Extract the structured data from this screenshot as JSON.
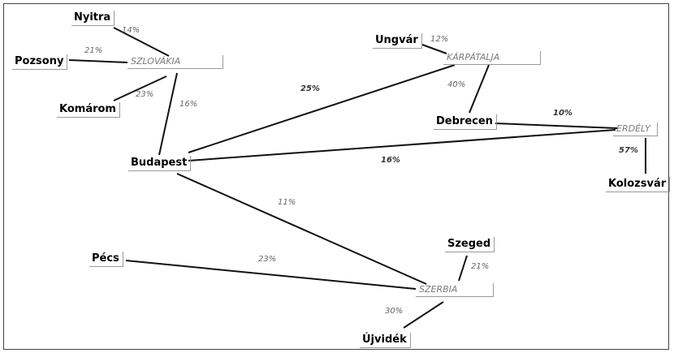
{
  "nodes": [
    {
      "id": "nyitra",
      "label": "Nyitra",
      "kind": "city"
    },
    {
      "id": "pozsony",
      "label": "Pozsony",
      "kind": "city"
    },
    {
      "id": "szlovakia",
      "label": "SZLOVÁKIA",
      "kind": "region"
    },
    {
      "id": "komarom",
      "label": "Komárom",
      "kind": "city"
    },
    {
      "id": "budapest",
      "label": "Budapest",
      "kind": "city"
    },
    {
      "id": "ungvar",
      "label": "Ungvár",
      "kind": "city"
    },
    {
      "id": "karpatalja",
      "label": "KÁRPÁTALJA",
      "kind": "region"
    },
    {
      "id": "debrecen",
      "label": "Debrecen",
      "kind": "city"
    },
    {
      "id": "erdely",
      "label": "ERDÉLY",
      "kind": "region"
    },
    {
      "id": "kolozsvar",
      "label": "Kolozsvár",
      "kind": "city"
    },
    {
      "id": "pecs",
      "label": "Pécs",
      "kind": "city"
    },
    {
      "id": "szeged",
      "label": "Szeged",
      "kind": "city"
    },
    {
      "id": "szerbia",
      "label": "SZERBIA",
      "kind": "region"
    },
    {
      "id": "ujvidek",
      "label": "Újvidék",
      "kind": "city"
    }
  ],
  "edges": [
    {
      "from": "nyitra",
      "to": "szlovakia",
      "label": "14%"
    },
    {
      "from": "pozsony",
      "to": "szlovakia",
      "label": "21%"
    },
    {
      "from": "komarom",
      "to": "szlovakia",
      "label": "23%"
    },
    {
      "from": "budapest",
      "to": "szlovakia",
      "label": "16%"
    },
    {
      "from": "ungvar",
      "to": "karpatalja",
      "label": "12%"
    },
    {
      "from": "debrecen",
      "to": "karpatalja",
      "label": "40%"
    },
    {
      "from": "budapest",
      "to": "karpatalja",
      "label": "25%"
    },
    {
      "from": "debrecen",
      "to": "erdely",
      "label": "10%"
    },
    {
      "from": "budapest",
      "to": "erdely",
      "label": "16%"
    },
    {
      "from": "kolozsvar",
      "to": "erdely",
      "label": "57%"
    },
    {
      "from": "budapest",
      "to": "szerbia",
      "label": "11%"
    },
    {
      "from": "pecs",
      "to": "szerbia",
      "label": "23%"
    },
    {
      "from": "szeged",
      "to": "szerbia",
      "label": "21%"
    },
    {
      "from": "ujvidek",
      "to": "szerbia",
      "label": "30%"
    }
  ]
}
